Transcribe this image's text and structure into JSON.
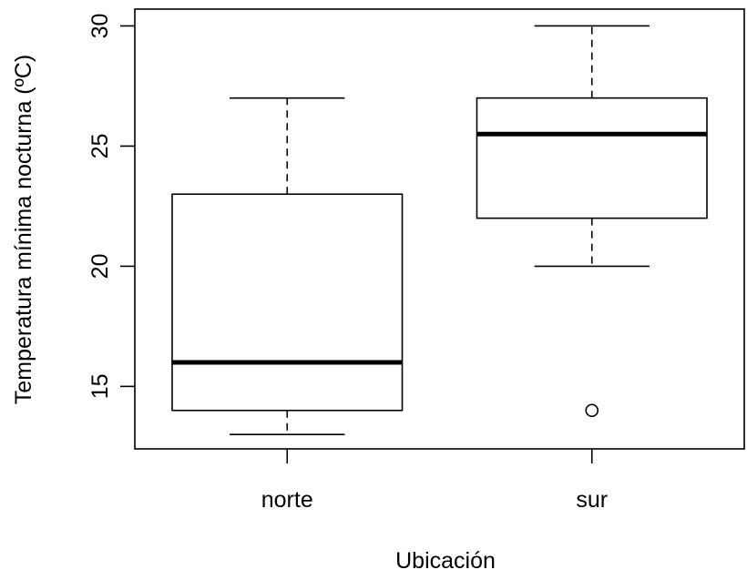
{
  "chart_data": {
    "type": "boxplot",
    "xlabel": "Ubicación",
    "ylabel": "Temperatura mínima nocturna (ºC)",
    "ylim": [
      12.4,
      30.7
    ],
    "y_ticks": [
      "15",
      "20",
      "25",
      "30"
    ],
    "categories": [
      "norte",
      "sur"
    ],
    "boxes": [
      {
        "name": "norte",
        "whisker_low": 13,
        "q1": 14,
        "median": 16,
        "q3": 23,
        "whisker_high": 27,
        "outliers": []
      },
      {
        "name": "sur",
        "whisker_low": 20,
        "q1": 22,
        "median": 25.5,
        "q3": 27,
        "whisker_high": 30,
        "outliers": [
          14
        ]
      }
    ],
    "grid": false
  }
}
